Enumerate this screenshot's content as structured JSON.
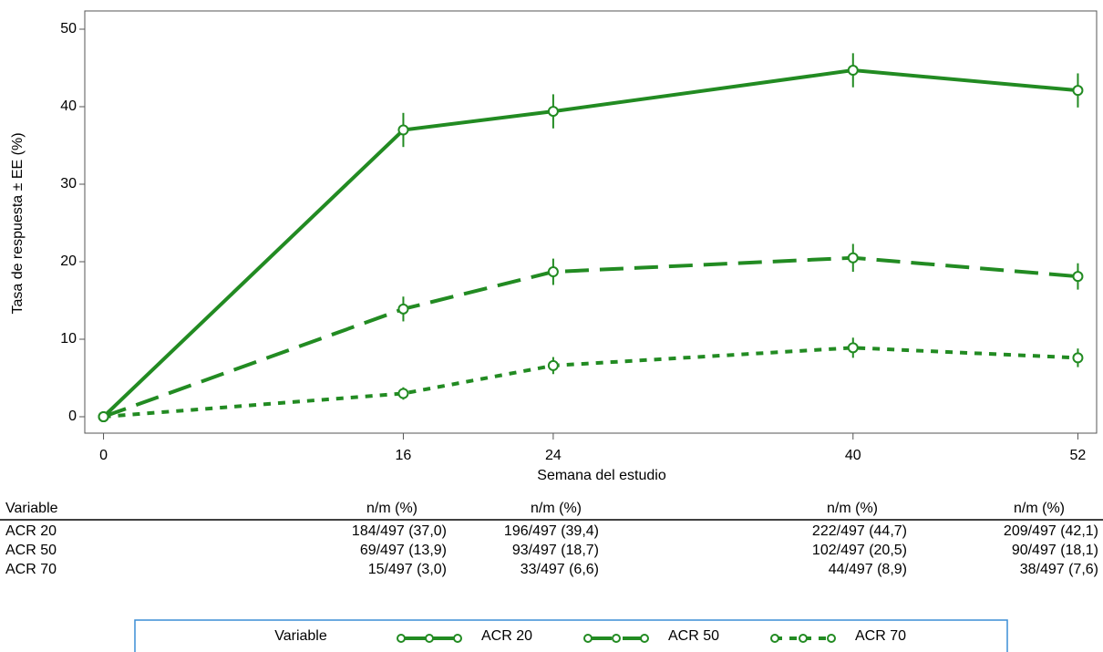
{
  "chart_data": {
    "type": "line",
    "x_label": "Semana del estudio",
    "y_label": "Tasa de respuesta ± EE (%)",
    "x": [
      0,
      16,
      24,
      40,
      52
    ],
    "xlim": [
      -1,
      53
    ],
    "xticks": [
      0,
      16,
      24,
      40,
      52
    ],
    "ylim": [
      -2,
      52
    ],
    "yticks": [
      0,
      10,
      20,
      30,
      40,
      50
    ],
    "legend_title": "Variable",
    "legend_position": "bottom",
    "series": [
      {
        "name": "ACR 20",
        "color": "#228b22",
        "dash": "solid",
        "values": [
          0,
          37.0,
          39.4,
          44.7,
          42.1
        ],
        "errors": [
          null,
          2.2,
          2.2,
          2.2,
          2.2
        ]
      },
      {
        "name": "ACR 50",
        "color": "#228b22",
        "dash": "dashed",
        "values": [
          0,
          13.9,
          18.7,
          20.5,
          18.1
        ],
        "errors": [
          null,
          1.6,
          1.7,
          1.8,
          1.7
        ]
      },
      {
        "name": "ACR 70",
        "color": "#228b22",
        "dash": "dotted",
        "values": [
          0,
          3.0,
          6.6,
          8.9,
          7.6
        ],
        "errors": [
          null,
          0.8,
          1.1,
          1.3,
          1.2
        ]
      }
    ]
  },
  "table": {
    "columns": [
      "Variable",
      "n/m (%)",
      "n/m (%)",
      "n/m (%)",
      "n/m (%)"
    ],
    "rows": [
      [
        "ACR 20",
        "184/497 (37,0)",
        "196/497 (39,4)",
        "222/497 (44,7)",
        "209/497 (42,1)"
      ],
      [
        "ACR 50",
        "69/497 (13,9)",
        "93/497 (18,7)",
        "102/497 (20,5)",
        "90/497 (18,1)"
      ],
      [
        "ACR 70",
        "15/497 (3,0)",
        "33/497 (6,6)",
        "44/497 (8,9)",
        "38/497 (7,6)"
      ]
    ]
  }
}
